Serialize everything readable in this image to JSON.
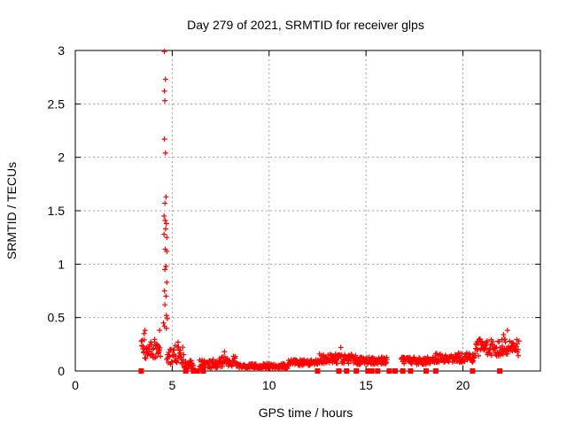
{
  "chart_data": {
    "type": "scatter",
    "title": "Day 279 of 2021, SRMTID for receiver glps",
    "xlabel": "GPS time / hours",
    "ylabel": "SRMTID / TECUs",
    "xlim": [
      0,
      24
    ],
    "ylim": [
      0,
      3
    ],
    "x_ticks": [
      0,
      5,
      10,
      15,
      20
    ],
    "x_tick_labels": [
      "0",
      "5",
      "10",
      "15",
      "20"
    ],
    "y_ticks": [
      0,
      0.5,
      1,
      1.5,
      2,
      2.5,
      3
    ],
    "y_tick_labels": [
      "0",
      "0.5",
      "1",
      "1.5",
      "2",
      "2.5",
      "3"
    ],
    "grid": true,
    "marker": "plus",
    "series": [
      {
        "name": "SRMTID",
        "color": "#ff0000",
        "spike_points": [
          [
            4.6,
            2.99
          ],
          [
            4.65,
            2.73
          ],
          [
            4.6,
            2.62
          ],
          [
            4.62,
            2.53
          ],
          [
            4.6,
            2.17
          ],
          [
            4.65,
            2.04
          ],
          [
            4.68,
            1.63
          ],
          [
            4.62,
            1.57
          ],
          [
            4.58,
            1.45
          ],
          [
            4.63,
            1.41
          ],
          [
            4.7,
            1.38
          ],
          [
            4.66,
            1.33
          ],
          [
            4.58,
            1.28
          ],
          [
            4.72,
            1.25
          ],
          [
            4.64,
            1.14
          ],
          [
            4.72,
            1.12
          ],
          [
            4.68,
            0.98
          ],
          [
            4.62,
            0.95
          ],
          [
            4.72,
            0.83
          ],
          [
            4.6,
            0.75
          ],
          [
            4.68,
            0.7
          ],
          [
            4.62,
            0.62
          ],
          [
            4.7,
            0.52
          ],
          [
            4.75,
            0.49
          ],
          [
            4.55,
            0.45
          ],
          [
            4.6,
            0.42
          ],
          [
            4.7,
            0.4
          ],
          [
            3.6,
            0.38
          ],
          [
            3.55,
            0.35
          ],
          [
            4.35,
            0.38
          ],
          [
            5.3,
            0.27
          ],
          [
            7.7,
            0.18
          ],
          [
            13.7,
            0.22
          ],
          [
            22.1,
            0.34
          ],
          [
            22.3,
            0.38
          ]
        ],
        "zero_points": [
          3.4,
          5.7,
          6.1,
          6.3,
          6.6,
          12.5,
          13.6,
          14.0,
          14.5,
          15.1,
          15.3,
          15.6,
          16.2,
          16.5,
          16.9,
          17.3,
          18.1,
          18.6,
          20.5,
          21.9
        ],
        "baseline_segments": [
          {
            "x0": 3.4,
            "x1": 4.4,
            "lo": 0.1,
            "hi": 0.3
          },
          {
            "x0": 4.7,
            "x1": 5.6,
            "lo": 0.06,
            "hi": 0.24
          },
          {
            "x0": 5.6,
            "x1": 6.1,
            "lo": 0.02,
            "hi": 0.1
          },
          {
            "x0": 6.4,
            "x1": 7.4,
            "lo": 0.03,
            "hi": 0.11
          },
          {
            "x0": 7.4,
            "x1": 8.4,
            "lo": 0.04,
            "hi": 0.14
          },
          {
            "x0": 8.4,
            "x1": 11.0,
            "lo": 0.02,
            "hi": 0.07
          },
          {
            "x0": 11.0,
            "x1": 12.6,
            "lo": 0.05,
            "hi": 0.11
          },
          {
            "x0": 12.6,
            "x1": 14.5,
            "lo": 0.07,
            "hi": 0.16
          },
          {
            "x0": 14.5,
            "x1": 16.1,
            "lo": 0.06,
            "hi": 0.13
          },
          {
            "x0": 16.8,
            "x1": 18.4,
            "lo": 0.06,
            "hi": 0.13
          },
          {
            "x0": 18.4,
            "x1": 20.6,
            "lo": 0.08,
            "hi": 0.17
          },
          {
            "x0": 20.6,
            "x1": 22.9,
            "lo": 0.14,
            "hi": 0.3
          }
        ]
      }
    ]
  }
}
